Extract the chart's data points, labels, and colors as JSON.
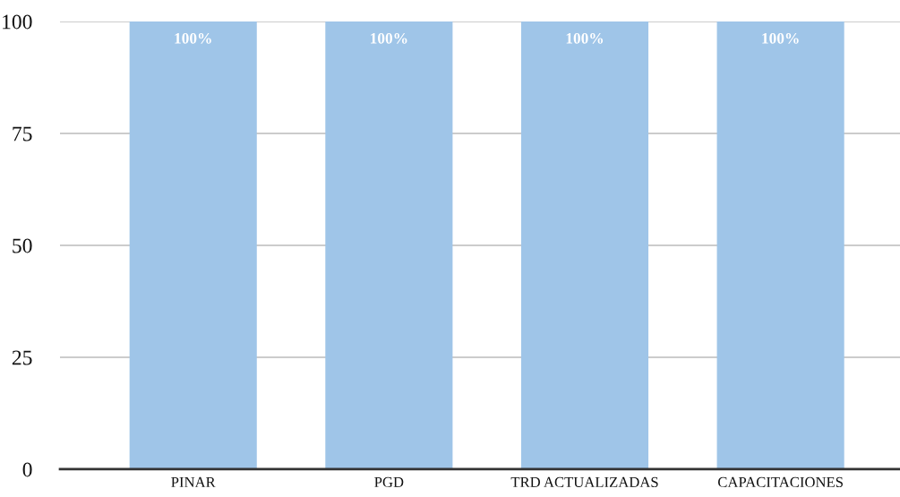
{
  "chart_data": {
    "type": "bar",
    "categories": [
      "PINAR",
      "PGD",
      "TRD ACTUALIZADAS",
      "CAPACITACIONES"
    ],
    "values": [
      100,
      100,
      100,
      100
    ],
    "value_labels": [
      "100%",
      "100%",
      "100%",
      "100%"
    ],
    "color": "#9fc5e8",
    "ylim": [
      0,
      100
    ],
    "yticks": [
      0,
      25,
      50,
      75,
      100
    ],
    "grid": "y",
    "legend": false
  }
}
